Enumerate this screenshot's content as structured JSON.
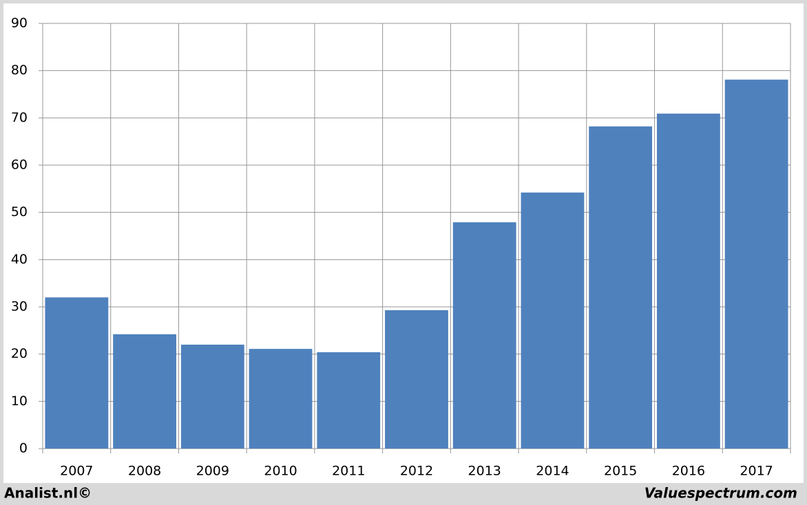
{
  "chart_data": {
    "type": "bar",
    "categories": [
      "2007",
      "2008",
      "2009",
      "2010",
      "2011",
      "2012",
      "2013",
      "2014",
      "2015",
      "2016",
      "2017"
    ],
    "values": [
      32.0,
      24.2,
      22.0,
      21.1,
      20.4,
      29.3,
      47.9,
      54.2,
      68.2,
      70.9,
      78.1
    ],
    "color": "#4f81bd",
    "ylim": [
      0,
      90
    ],
    "yticks": [
      0,
      10,
      20,
      30,
      40,
      50,
      60,
      70,
      80,
      90
    ],
    "grid": true,
    "footer_left": "Analist.nl©",
    "footer_right": "Valuespectrum.com"
  }
}
